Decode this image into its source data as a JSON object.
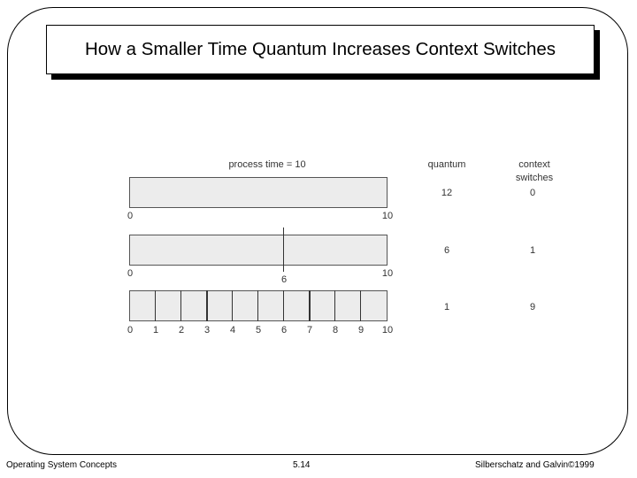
{
  "slide": {
    "title": "How a Smaller Time Quantum Increases Context Switches"
  },
  "diagram": {
    "process_time_label": "process time = 10",
    "quantum_header": "quantum",
    "context_switches_header_line1": "context",
    "context_switches_header_line2": "switches",
    "rows": [
      {
        "quantum": "12",
        "switches": "0",
        "ticks": [
          "0",
          "10"
        ]
      },
      {
        "quantum": "6",
        "switches": "1",
        "ticks": [
          "0",
          "6",
          "10"
        ]
      },
      {
        "quantum": "1",
        "switches": "9",
        "ticks": [
          "0",
          "1",
          "2",
          "3",
          "4",
          "5",
          "6",
          "7",
          "8",
          "9",
          "10"
        ]
      }
    ]
  },
  "footer": {
    "left": "Operating System Concepts",
    "center": "5.14",
    "right": "Silberschatz and Galvin©1999"
  }
}
